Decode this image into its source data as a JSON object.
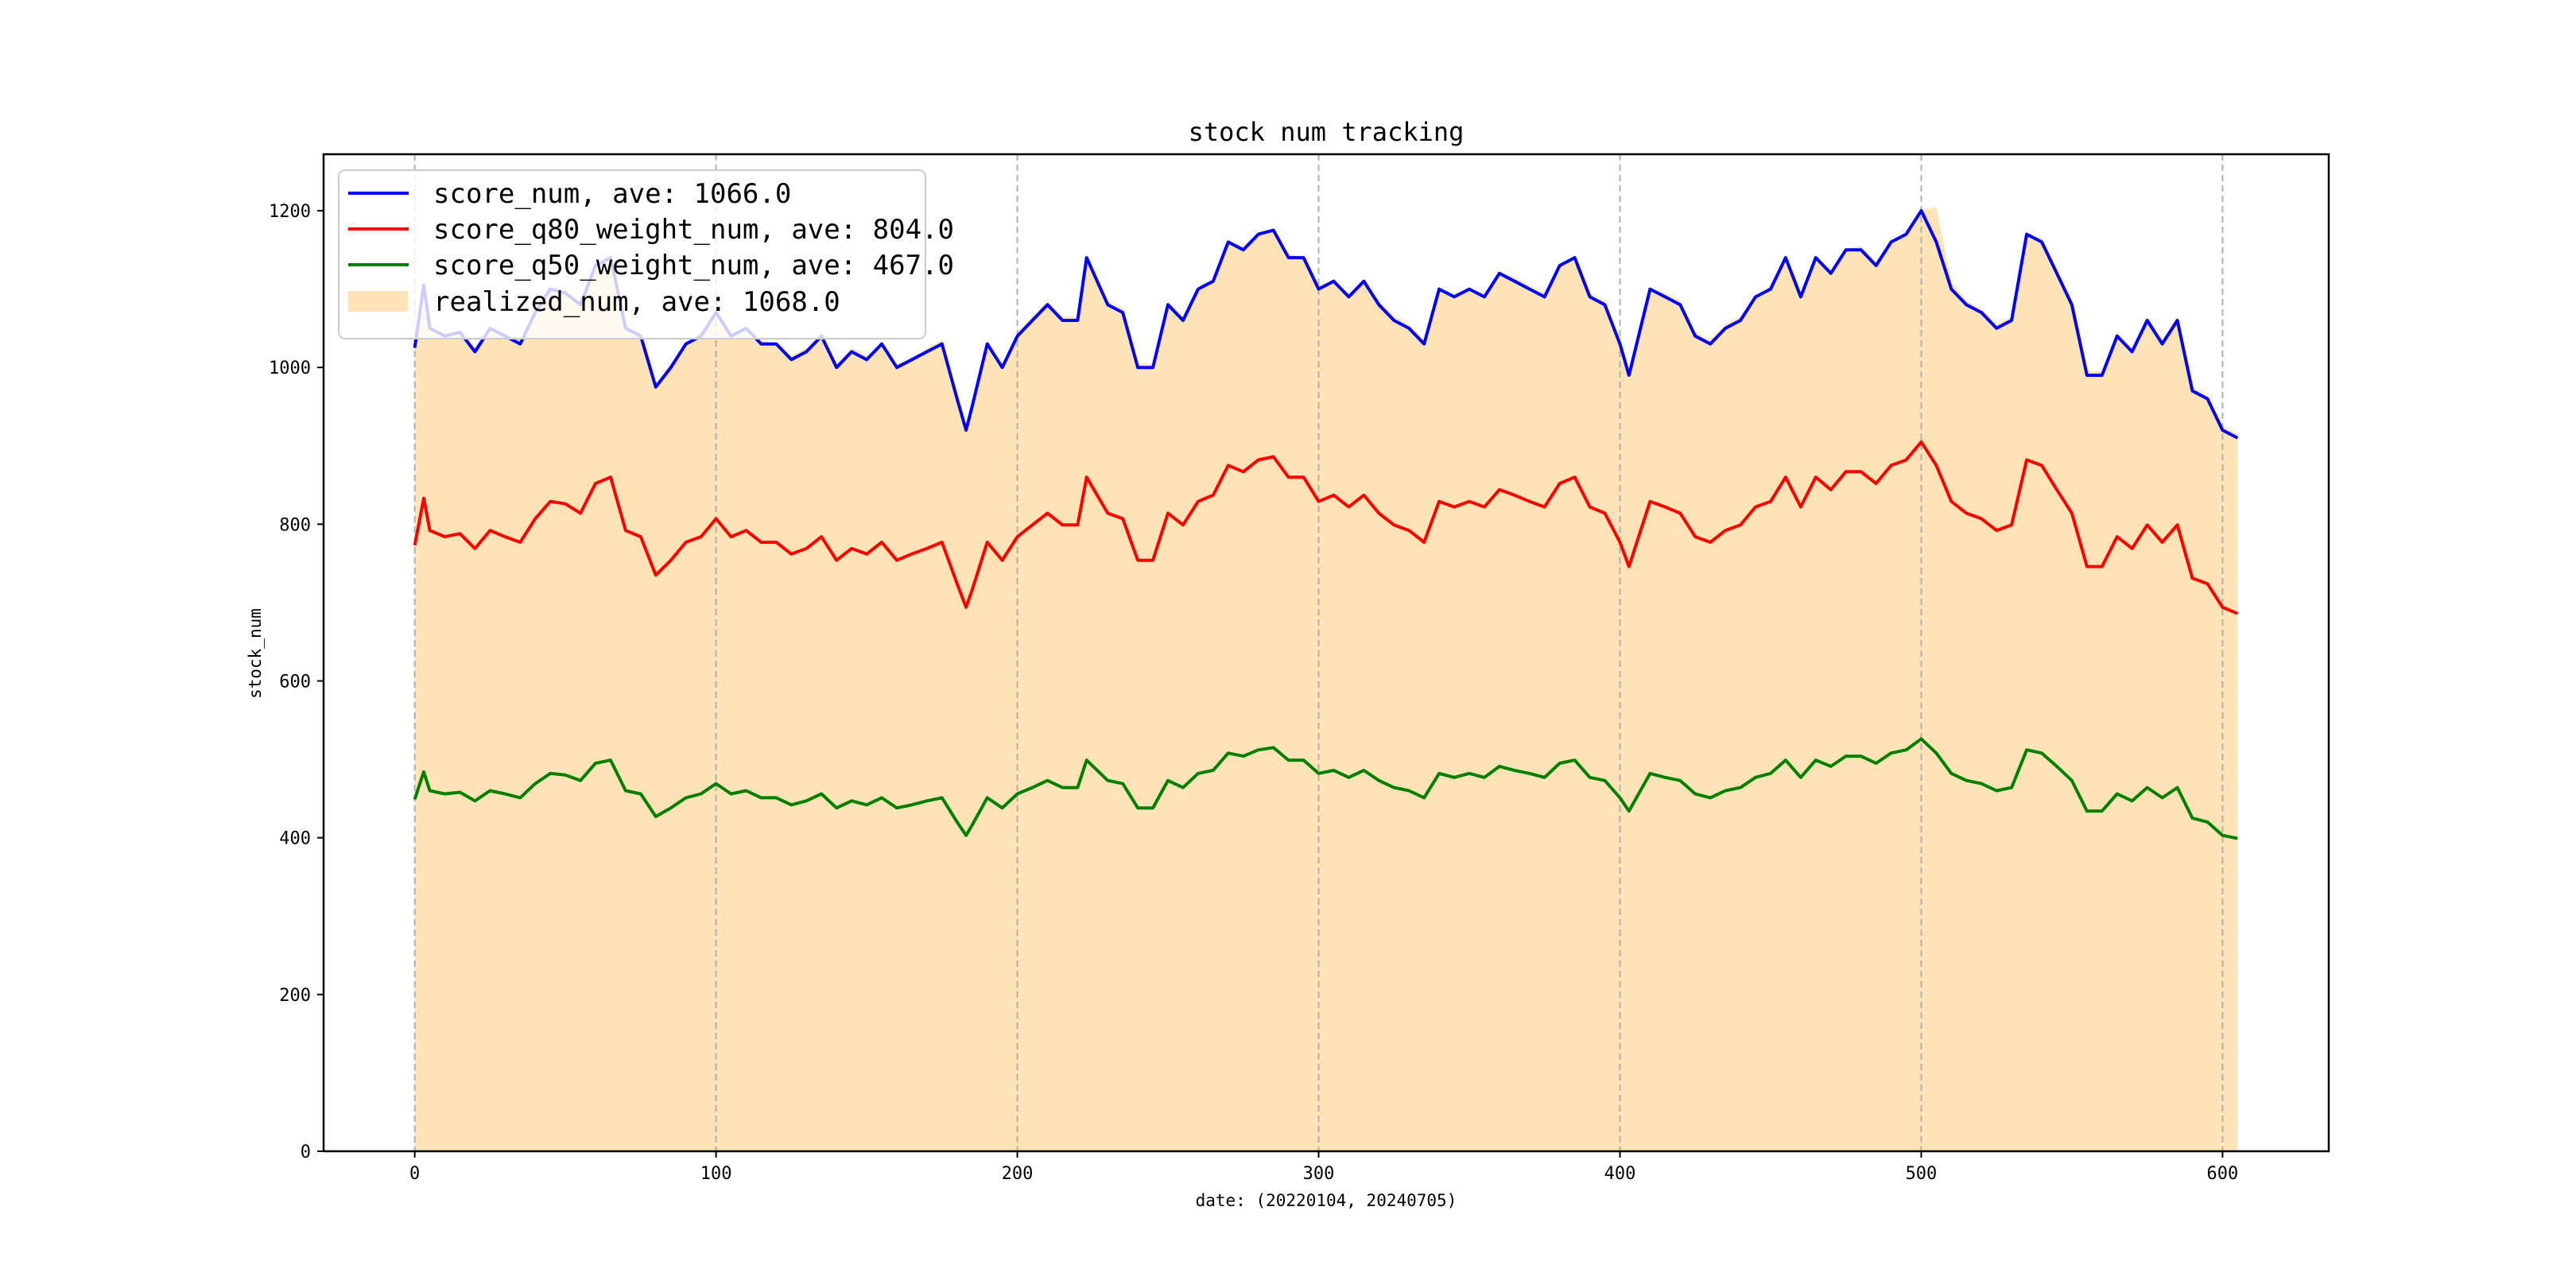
{
  "chart_data": {
    "type": "line",
    "title": "stock num tracking",
    "xlabel": "date: (20220104, 20240705)",
    "ylabel": "stock_num",
    "xlim": [
      -30.25,
      635.25
    ],
    "ylim": [
      0,
      1272
    ],
    "xticks": [
      0,
      100,
      200,
      300,
      400,
      500,
      600
    ],
    "yticks": [
      0,
      200,
      400,
      600,
      800,
      1000,
      1200
    ],
    "grid": "vertical dashed at x ticks",
    "legend_position": "top-left",
    "x": [
      0,
      3,
      5,
      10,
      15,
      20,
      25,
      30,
      35,
      40,
      45,
      50,
      55,
      60,
      65,
      70,
      75,
      80,
      85,
      90,
      95,
      100,
      105,
      110,
      115,
      120,
      125,
      130,
      135,
      140,
      145,
      150,
      155,
      160,
      165,
      170,
      175,
      180,
      183,
      185,
      190,
      195,
      200,
      205,
      210,
      215,
      220,
      223,
      230,
      235,
      240,
      245,
      250,
      255,
      260,
      265,
      270,
      275,
      280,
      285,
      290,
      295,
      300,
      305,
      310,
      315,
      320,
      325,
      330,
      335,
      340,
      345,
      350,
      355,
      360,
      365,
      370,
      375,
      380,
      385,
      390,
      395,
      400,
      403,
      410,
      415,
      420,
      425,
      430,
      435,
      440,
      445,
      450,
      455,
      460,
      465,
      470,
      475,
      480,
      485,
      490,
      495,
      500,
      505,
      510,
      515,
      520,
      525,
      530,
      535,
      540,
      545,
      550,
      555,
      560,
      565,
      570,
      575,
      580,
      585,
      590,
      595,
      600,
      605
    ],
    "series": [
      {
        "name": "score_num, ave: 1066.0",
        "color": "#0000ff",
        "type": "line",
        "values": [
          1025,
          1105,
          1050,
          1040,
          1045,
          1020,
          1050,
          1040,
          1030,
          1070,
          1100,
          1095,
          1080,
          1130,
          1140,
          1050,
          1040,
          975,
          1000,
          1030,
          1040,
          1070,
          1040,
          1050,
          1030,
          1030,
          1010,
          1020,
          1040,
          1000,
          1020,
          1010,
          1030,
          1000,
          1010,
          1020,
          1030,
          960,
          920,
          950,
          1030,
          1000,
          1040,
          1060,
          1080,
          1060,
          1060,
          1140,
          1080,
          1070,
          1000,
          1000,
          1080,
          1060,
          1100,
          1110,
          1160,
          1150,
          1170,
          1175,
          1140,
          1140,
          1100,
          1110,
          1090,
          1110,
          1080,
          1060,
          1050,
          1030,
          1100,
          1090,
          1100,
          1090,
          1120,
          1110,
          1100,
          1090,
          1130,
          1140,
          1090,
          1080,
          1030,
          990,
          1100,
          1090,
          1080,
          1040,
          1030,
          1050,
          1060,
          1090,
          1100,
          1140,
          1090,
          1140,
          1120,
          1150,
          1150,
          1130,
          1160,
          1170,
          1200,
          1160,
          1100,
          1080,
          1070,
          1050,
          1060,
          1170,
          1160,
          1120,
          1080,
          990,
          990,
          1040,
          1020,
          1060,
          1030,
          1060,
          970,
          960,
          920,
          910
        ]
      },
      {
        "name": "score_q80_weight_num, ave: 804.0",
        "color": "#ff0000",
        "type": "line",
        "values": [
          773,
          833,
          792,
          784,
          788,
          769,
          792,
          784,
          777,
          807,
          829,
          826,
          814,
          852,
          860,
          792,
          784,
          735,
          754,
          777,
          784,
          807,
          784,
          792,
          777,
          777,
          762,
          769,
          784,
          754,
          769,
          762,
          777,
          754,
          762,
          769,
          777,
          724,
          694,
          716,
          777,
          754,
          784,
          799,
          814,
          799,
          799,
          860,
          814,
          807,
          754,
          754,
          814,
          799,
          829,
          837,
          875,
          867,
          882,
          886,
          860,
          860,
          829,
          837,
          822,
          837,
          814,
          799,
          792,
          777,
          829,
          822,
          829,
          822,
          844,
          837,
          829,
          822,
          852,
          860,
          822,
          814,
          777,
          746,
          829,
          822,
          814,
          784,
          777,
          792,
          799,
          822,
          829,
          860,
          822,
          860,
          844,
          867,
          867,
          852,
          875,
          882,
          905,
          875,
          829,
          814,
          807,
          792,
          799,
          882,
          875,
          844,
          814,
          746,
          746,
          784,
          769,
          799,
          777,
          799,
          731,
          724,
          694,
          686
        ]
      },
      {
        "name": "score_q50_weight_num, ave: 467.0",
        "color": "#008000",
        "type": "line",
        "values": [
          449,
          484,
          460,
          456,
          458,
          447,
          460,
          456,
          451,
          469,
          482,
          480,
          473,
          495,
          499,
          460,
          456,
          427,
          438,
          451,
          456,
          469,
          456,
          460,
          451,
          451,
          442,
          447,
          456,
          438,
          447,
          442,
          451,
          438,
          442,
          447,
          451,
          420,
          403,
          416,
          451,
          438,
          456,
          464,
          473,
          464,
          464,
          499,
          473,
          469,
          438,
          438,
          473,
          464,
          482,
          486,
          508,
          504,
          512,
          515,
          499,
          499,
          482,
          486,
          477,
          486,
          473,
          464,
          460,
          451,
          482,
          477,
          482,
          477,
          491,
          486,
          482,
          477,
          495,
          499,
          477,
          473,
          451,
          434,
          482,
          477,
          473,
          456,
          451,
          460,
          464,
          477,
          482,
          499,
          477,
          499,
          491,
          504,
          504,
          495,
          508,
          512,
          526,
          508,
          482,
          473,
          469,
          460,
          464,
          512,
          508,
          491,
          473,
          434,
          434,
          456,
          447,
          464,
          451,
          464,
          425,
          420,
          403,
          399
        ]
      },
      {
        "name": "realized_num, ave: 1068.0",
        "color": "#fde3b5",
        "type": "area",
        "values": [
          1030,
          1105,
          1050,
          1045,
          1045,
          1025,
          1050,
          1045,
          1035,
          1070,
          1100,
          1095,
          1085,
          1130,
          1140,
          1055,
          1045,
          980,
          1005,
          1030,
          1045,
          1075,
          1045,
          1050,
          1035,
          1030,
          1015,
          1025,
          1040,
          1005,
          1025,
          1015,
          1030,
          1005,
          1010,
          1025,
          1035,
          965,
          925,
          955,
          1035,
          1005,
          1045,
          1065,
          1085,
          1065,
          1065,
          1140,
          1085,
          1075,
          1005,
          1005,
          1085,
          1065,
          1100,
          1110,
          1160,
          1155,
          1170,
          1175,
          1145,
          1140,
          1105,
          1110,
          1095,
          1110,
          1085,
          1065,
          1055,
          1035,
          1100,
          1095,
          1100,
          1095,
          1120,
          1115,
          1105,
          1095,
          1130,
          1140,
          1095,
          1085,
          1035,
          995,
          1100,
          1095,
          1085,
          1045,
          1035,
          1055,
          1065,
          1090,
          1105,
          1140,
          1095,
          1140,
          1125,
          1150,
          1155,
          1135,
          1160,
          1170,
          1200,
          1205,
          1110,
          1085,
          1075,
          1055,
          1065,
          1170,
          1165,
          1125,
          1085,
          995,
          995,
          1045,
          1025,
          1065,
          1035,
          1065,
          975,
          965,
          925,
          915
        ]
      }
    ]
  }
}
